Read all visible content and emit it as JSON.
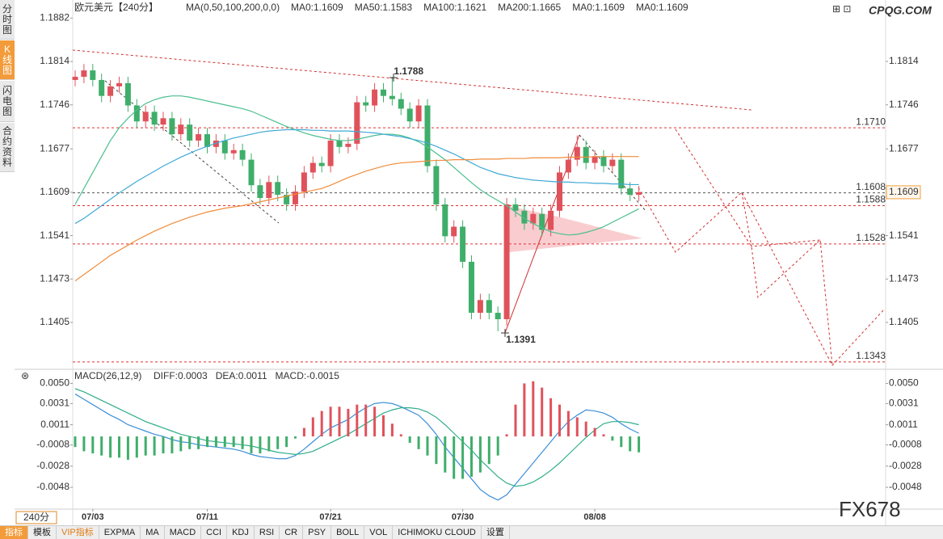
{
  "ui": {
    "sidebar": [
      "分时图",
      "K线图",
      "闪电图",
      "合约资料"
    ],
    "period": "240分",
    "toolbar": [
      "指标",
      "模板",
      "VIP指标",
      "EXPMA",
      "MA",
      "MACD",
      "CCI",
      "KDJ",
      "RSI",
      "CR",
      "PSY",
      "BOLL",
      "VOL",
      "ICHIMOKU CLOUD",
      "设置"
    ],
    "logo": "CPQG.COM",
    "watermark": "FX678"
  },
  "chart_data": [
    {
      "type": "candlestick",
      "title": "欧元美元",
      "period_label": "【240分】",
      "indicator": "MA(0,50,100,200,0,0)",
      "up_color": "#e0525b",
      "down_color": "#3fae6a",
      "categories": [
        null,
        null,
        "07/03",
        null,
        null,
        null,
        null,
        null,
        null,
        null,
        null,
        null,
        null,
        null,
        null,
        "07/11",
        null,
        null,
        null,
        null,
        null,
        null,
        null,
        null,
        null,
        null,
        null,
        null,
        null,
        "07/21",
        null,
        null,
        null,
        null,
        null,
        null,
        null,
        null,
        null,
        null,
        null,
        null,
        null,
        null,
        "07/30",
        null,
        null,
        null,
        null,
        null,
        null,
        null,
        null,
        null,
        null,
        null,
        null,
        null,
        null,
        "08/08",
        null,
        null,
        null,
        null,
        null
      ],
      "open": [
        1.1785,
        1.179,
        1.18,
        1.1785,
        1.176,
        1.1775,
        1.178,
        1.1745,
        1.172,
        1.1735,
        1.1715,
        1.1725,
        1.17,
        1.1715,
        1.169,
        1.17,
        1.168,
        1.169,
        1.167,
        1.1675,
        1.166,
        1.162,
        1.16,
        1.1625,
        1.1605,
        1.159,
        1.161,
        1.164,
        1.1655,
        1.165,
        1.169,
        1.168,
        1.1685,
        1.175,
        1.1745,
        1.177,
        1.176,
        1.1755,
        1.174,
        1.172,
        1.1745,
        1.165,
        1.159,
        1.154,
        1.1555,
        1.15,
        1.142,
        1.144,
        1.142,
        1.141,
        1.159,
        1.158,
        1.156,
        1.1575,
        1.155,
        1.158,
        1.164,
        1.166,
        1.168,
        1.1655,
        1.1665,
        1.165,
        1.166,
        1.1615,
        1.1605
      ],
      "high": [
        1.18,
        1.181,
        1.181,
        1.1795,
        1.1785,
        1.179,
        1.179,
        1.1755,
        1.1745,
        1.1745,
        1.1735,
        1.1735,
        1.1725,
        1.1725,
        1.171,
        1.171,
        1.17,
        1.17,
        1.1685,
        1.1685,
        1.167,
        1.163,
        1.1635,
        1.1635,
        1.1615,
        1.162,
        1.165,
        1.1665,
        1.1665,
        1.17,
        1.17,
        1.1695,
        1.176,
        1.176,
        1.178,
        1.178,
        1.1788,
        1.1765,
        1.175,
        1.1755,
        1.1755,
        1.166,
        1.16,
        1.1565,
        1.1565,
        1.151,
        1.145,
        1.145,
        1.143,
        1.16,
        1.16,
        1.159,
        1.1585,
        1.1585,
        1.159,
        1.165,
        1.167,
        1.1698,
        1.169,
        1.1675,
        1.1675,
        1.167,
        1.167,
        1.1625,
        1.1619
      ],
      "low": [
        1.1775,
        1.178,
        1.1775,
        1.175,
        1.175,
        1.1765,
        1.1735,
        1.171,
        1.171,
        1.1705,
        1.1705,
        1.169,
        1.169,
        1.168,
        1.168,
        1.167,
        1.167,
        1.166,
        1.166,
        1.165,
        1.161,
        1.159,
        1.159,
        1.1595,
        1.158,
        1.158,
        1.16,
        1.163,
        1.164,
        1.164,
        1.167,
        1.167,
        1.1675,
        1.1735,
        1.1735,
        1.175,
        1.1745,
        1.173,
        1.171,
        1.171,
        1.164,
        1.158,
        1.153,
        1.153,
        1.149,
        1.141,
        1.141,
        1.141,
        1.1391,
        1.14,
        1.157,
        1.155,
        1.155,
        1.154,
        1.154,
        1.157,
        1.163,
        1.165,
        1.1645,
        1.1645,
        1.164,
        1.164,
        1.1605,
        1.1595,
        1.1595
      ],
      "close": [
        1.179,
        1.18,
        1.1785,
        1.176,
        1.1775,
        1.178,
        1.1745,
        1.172,
        1.1735,
        1.1715,
        1.1725,
        1.17,
        1.1715,
        1.169,
        1.17,
        1.168,
        1.169,
        1.167,
        1.1675,
        1.166,
        1.162,
        1.16,
        1.1625,
        1.1605,
        1.159,
        1.161,
        1.164,
        1.1655,
        1.165,
        1.169,
        1.168,
        1.1685,
        1.175,
        1.1745,
        1.177,
        1.176,
        1.1755,
        1.174,
        1.172,
        1.1745,
        1.165,
        1.159,
        1.154,
        1.1555,
        1.15,
        1.142,
        1.144,
        1.142,
        1.141,
        1.159,
        1.158,
        1.156,
        1.1575,
        1.155,
        1.158,
        1.164,
        1.166,
        1.168,
        1.1655,
        1.1665,
        1.165,
        1.166,
        1.1615,
        1.1605,
        1.1609
      ],
      "legend": [
        {
          "label": "MA0:1.1609",
          "color": "#3a8fd9"
        },
        {
          "label": "MA50:1.1583",
          "color": "#4cbf8f",
          "values": [
            1.159,
            1.1615,
            1.164,
            1.1665,
            1.169,
            1.171,
            1.1725,
            1.1738,
            1.1748,
            1.1754,
            1.1758,
            1.176,
            1.176,
            1.1758,
            1.1755,
            1.1752,
            1.1749,
            1.1746,
            1.1743,
            1.174,
            1.1736,
            1.173,
            1.1724,
            1.1718,
            1.1712,
            1.1707,
            1.1702,
            1.1698,
            1.1695,
            1.1692,
            1.169,
            1.169,
            1.1692,
            1.1695,
            1.1698,
            1.17,
            1.17,
            1.1698,
            1.1694,
            1.1688,
            1.168,
            1.167,
            1.166,
            1.1648,
            1.1636,
            1.1624,
            1.1613,
            1.1604,
            1.1596,
            1.1588,
            1.1578,
            1.1568,
            1.156,
            1.1553,
            1.1547,
            1.1544,
            1.1542,
            1.1543,
            1.1546,
            1.155,
            1.1555,
            1.1562,
            1.1569,
            1.1576,
            1.1583
          ]
        },
        {
          "label": "MA100:1.1621",
          "color": "#3fa9d6",
          "values": [
            1.156,
            1.1568,
            1.1578,
            1.1588,
            1.1598,
            1.1608,
            1.1617,
            1.1626,
            1.1634,
            1.1642,
            1.165,
            1.1657,
            1.1664,
            1.167,
            1.1676,
            1.1681,
            1.1686,
            1.169,
            1.1694,
            1.1697,
            1.17,
            1.1703,
            1.1705,
            1.1706,
            1.1707,
            1.1707,
            1.1707,
            1.1706,
            1.1706,
            1.1705,
            1.1705,
            1.1705,
            1.1704,
            1.1703,
            1.1702,
            1.17,
            1.1698,
            1.1696,
            1.1693,
            1.169,
            1.1686,
            1.1681,
            1.1675,
            1.1669,
            1.1662,
            1.1655,
            1.1648,
            1.1643,
            1.1638,
            1.1635,
            1.1632,
            1.163,
            1.1628,
            1.1627,
            1.1626,
            1.1625,
            1.1625,
            1.1624,
            1.1624,
            1.1623,
            1.1623,
            1.1622,
            1.1622,
            1.1621,
            1.1621
          ]
        },
        {
          "label": "MA200:1.1665",
          "color": "#f08c3a",
          "values": [
            1.147,
            1.148,
            1.149,
            1.15,
            1.151,
            1.1518,
            1.1526,
            1.1534,
            1.1541,
            1.1548,
            1.1554,
            1.156,
            1.1565,
            1.157,
            1.1574,
            1.1578,
            1.1581,
            1.1584,
            1.1586,
            1.1588,
            1.1591,
            1.1594,
            1.1597,
            1.16,
            1.1603,
            1.1606,
            1.1609,
            1.1612,
            1.1615,
            1.162,
            1.1626,
            1.1632,
            1.1637,
            1.1642,
            1.1646,
            1.165,
            1.1653,
            1.1655,
            1.1656,
            1.1657,
            1.1658,
            1.1659,
            1.1659,
            1.166,
            1.166,
            1.166,
            1.1661,
            1.1661,
            1.1661,
            1.1662,
            1.1662,
            1.1662,
            1.1663,
            1.1663,
            1.1663,
            1.1663,
            1.1664,
            1.1664,
            1.1664,
            1.1665,
            1.1665,
            1.1665,
            1.1665,
            1.1665,
            1.1665
          ]
        },
        {
          "label": "MA0:1.1609",
          "color": "#e58ad6"
        },
        {
          "label": "MA0:1.1609",
          "color": "#8a8ff0"
        }
      ],
      "ylim": [
        1.1334,
        1.1904
      ],
      "yticks": [
        1.1882,
        1.1814,
        1.1746,
        1.1677,
        1.1609,
        1.1541,
        1.1473,
        1.1405
      ],
      "yticks_right": [
        1.1814,
        1.1746,
        1.1677,
        1.1541,
        1.1473,
        1.1405
      ],
      "levels": [
        {
          "value": 1.171,
          "label": "1.1710"
        },
        1.1608,
        1.1588,
        1.1528,
        1.1343
      ],
      "level_colors": [
        "#e03030",
        "#555555",
        "#e03030",
        "#e03030",
        "#e03030"
      ],
      "high_label_index": 36,
      "low_label_index": 48
    },
    {
      "type": "macd",
      "title": "MACD(26,12,9)",
      "series": [
        {
          "label": "DIFF:0.0003",
          "color": "#3c8fd8",
          "values": [
            0.004,
            0.0035,
            0.003,
            0.0025,
            0.002,
            0.0016,
            0.0011,
            0.0008,
            0.0005,
            0.0002,
            0.0,
            -0.0003,
            -0.0005,
            -0.0006,
            -0.0008,
            -0.0009,
            -0.001,
            -0.0011,
            -0.0012,
            -0.0014,
            -0.0017,
            -0.0019,
            -0.002,
            -0.0021,
            -0.0021,
            -0.0018,
            -0.0012,
            -0.0005,
            0.0002,
            0.0008,
            0.0012,
            0.0016,
            0.0022,
            0.0027,
            0.0031,
            0.0032,
            0.0031,
            0.0028,
            0.0024,
            0.002,
            0.0012,
            0.0002,
            -0.001,
            -0.002,
            -0.003,
            -0.004,
            -0.005,
            -0.0056,
            -0.006,
            -0.0055,
            -0.0045,
            -0.0035,
            -0.0025,
            -0.0015,
            -0.0005,
            0.0005,
            0.0014,
            0.002,
            0.0025,
            0.0024,
            0.0022,
            0.0018,
            0.0012,
            0.0007,
            0.0003
          ]
        },
        {
          "label": "DEA:0.0011",
          "color": "#2fae8a",
          "values": [
            0.0045,
            0.0042,
            0.0038,
            0.0034,
            0.003,
            0.0026,
            0.0022,
            0.0018,
            0.0014,
            0.0011,
            0.0008,
            0.0005,
            0.0002,
            0.0,
            -0.0002,
            -0.0004,
            -0.0005,
            -0.0006,
            -0.0007,
            -0.0008,
            -0.0009,
            -0.0011,
            -0.0013,
            -0.0015,
            -0.0016,
            -0.0017,
            -0.0016,
            -0.0014,
            -0.001,
            -0.0006,
            -0.0002,
            0.0002,
            0.0007,
            0.0012,
            0.0017,
            0.0022,
            0.0025,
            0.0027,
            0.0027,
            0.0026,
            0.0023,
            0.0018,
            0.0011,
            0.0003,
            -0.0005,
            -0.0013,
            -0.0022,
            -0.003,
            -0.0038,
            -0.0044,
            -0.0047,
            -0.0046,
            -0.0043,
            -0.0038,
            -0.0032,
            -0.0025,
            -0.0017,
            -0.0009,
            -0.0001,
            0.0006,
            0.0012,
            0.0014,
            0.0014,
            0.0013,
            0.0011
          ]
        },
        {
          "label": "MACD:-0.0015",
          "color": "#e0525b",
          "neg_color": "#3fae6a",
          "bars": true,
          "values": [
            -0.001,
            -0.0014,
            -0.0016,
            -0.0018,
            -0.002,
            -0.002,
            -0.0022,
            -0.002,
            -0.0018,
            -0.0018,
            -0.0016,
            -0.0016,
            -0.0014,
            -0.0012,
            -0.0012,
            -0.001,
            -0.001,
            -0.001,
            -0.001,
            -0.0012,
            -0.0016,
            -0.0016,
            -0.0014,
            -0.0012,
            -0.001,
            -0.0002,
            0.0008,
            0.0018,
            0.0024,
            0.0028,
            0.0028,
            0.0026,
            0.003,
            0.003,
            0.0028,
            0.002,
            0.0012,
            0.0002,
            -0.0006,
            -0.0012,
            -0.0018,
            -0.0026,
            -0.0034,
            -0.004,
            -0.004,
            -0.0038,
            -0.0034,
            -0.0026,
            -0.0018,
            0.0002,
            0.003,
            0.005,
            0.0052,
            0.0046,
            0.0036,
            0.003,
            0.0024,
            0.0018,
            0.0014,
            0.0008,
            0.0002,
            -0.0004,
            -0.001,
            -0.0014,
            -0.0015
          ]
        }
      ],
      "ylim": [
        -0.0067,
        0.0061
      ],
      "yticks": [
        {
          "value": 0.005,
          "label": "0.0050"
        },
        0.0031,
        0.0011,
        -0.0008,
        -0.0028,
        -0.0048
      ]
    }
  ]
}
